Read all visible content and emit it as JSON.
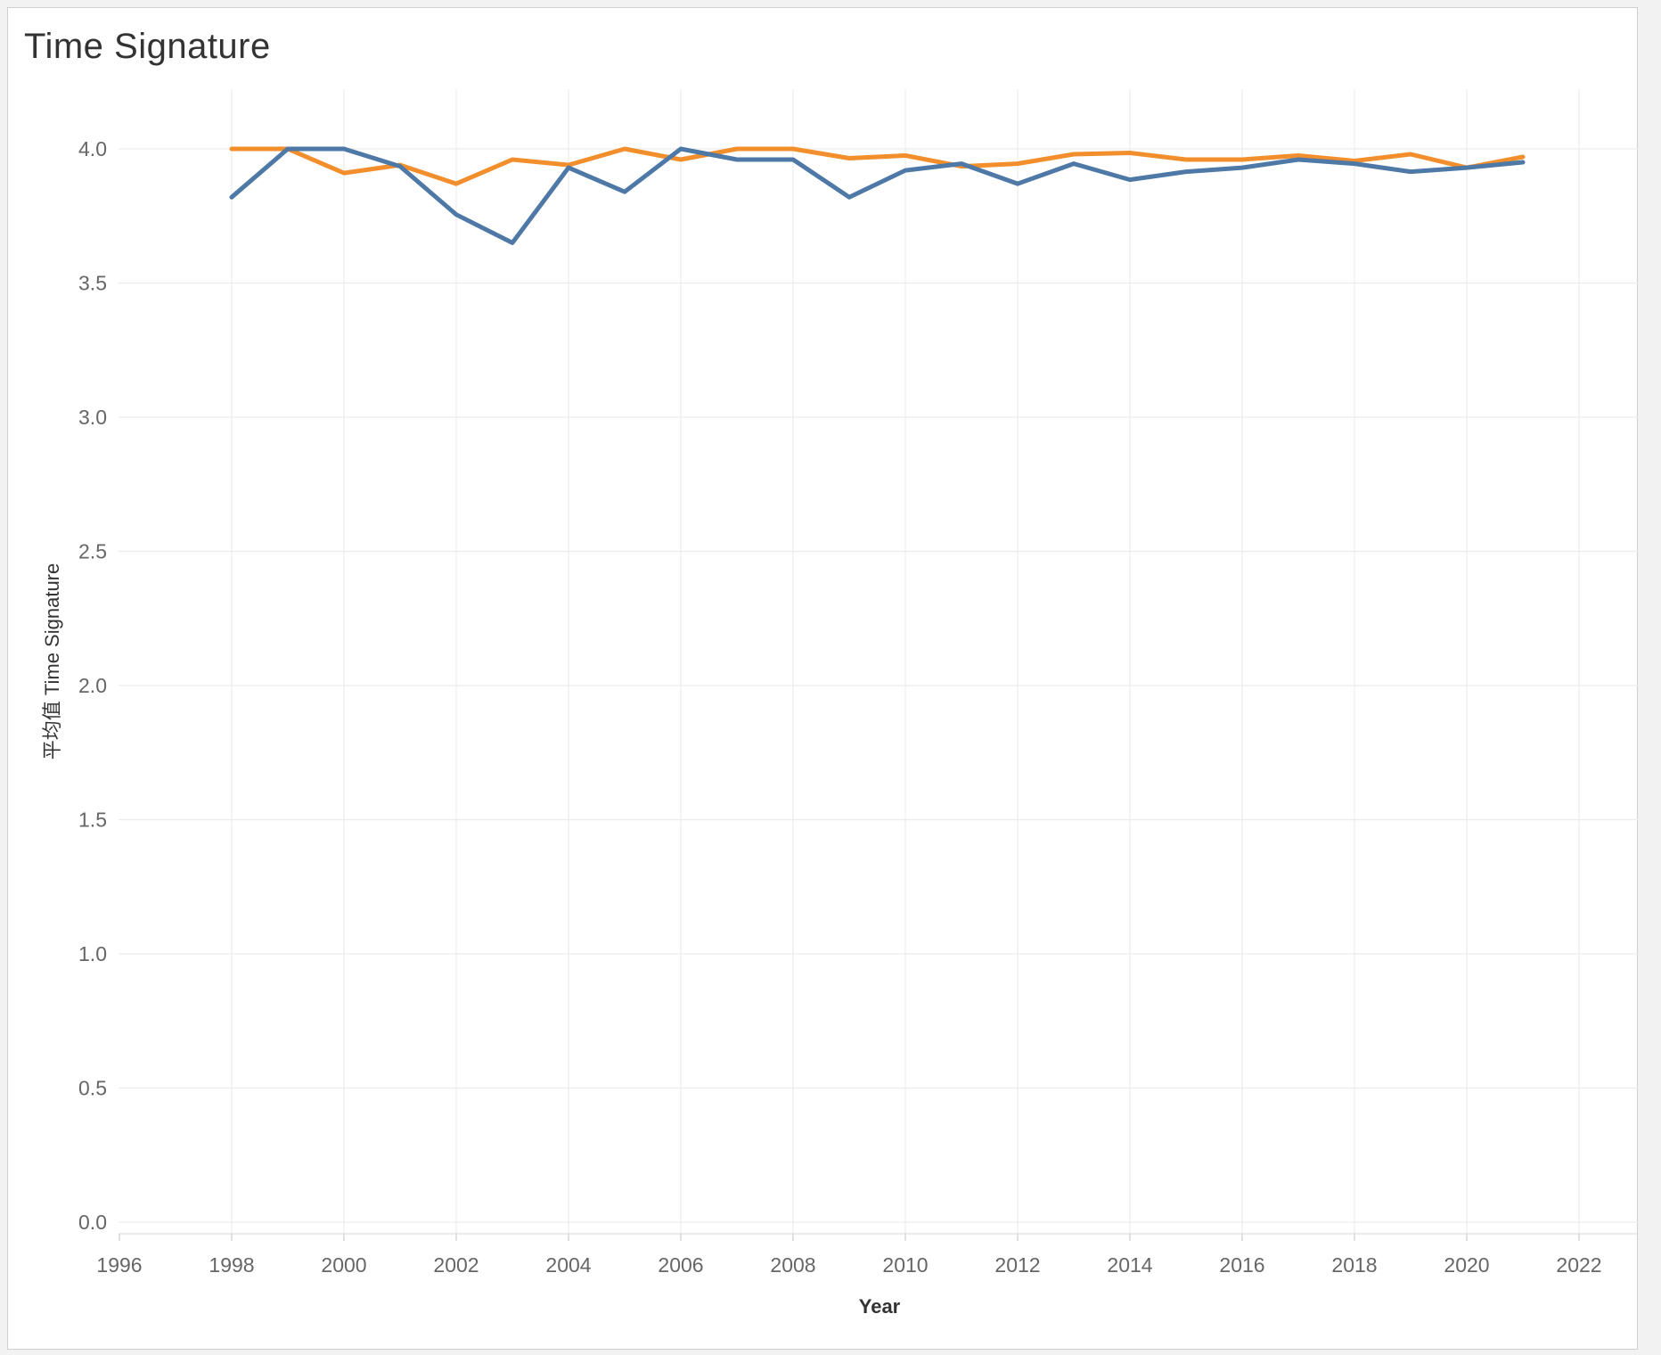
{
  "title": "Time Signature",
  "chart_data": {
    "type": "line",
    "title": "Time Signature",
    "xlabel": "Year",
    "ylabel": "平均值 Time Signature",
    "xlim": [
      1995,
      2023.5
    ],
    "ylim": [
      0,
      4.2
    ],
    "x_ticks": [
      1996,
      1998,
      2000,
      2002,
      2004,
      2006,
      2008,
      2010,
      2012,
      2014,
      2016,
      2018,
      2020,
      2022
    ],
    "y_ticks": [
      0.0,
      0.5,
      1.0,
      1.5,
      2.0,
      2.5,
      3.0,
      3.5,
      4.0
    ],
    "y_tick_labels": [
      "0.0",
      "0.5",
      "1.0",
      "1.5",
      "2.0",
      "2.5",
      "3.0",
      "3.5",
      "4.0"
    ],
    "grid": true,
    "x": [
      1998,
      1999,
      2000,
      2001,
      2002,
      2003,
      2004,
      2005,
      2006,
      2007,
      2008,
      2009,
      2010,
      2011,
      2012,
      2013,
      2014,
      2015,
      2016,
      2017,
      2018,
      2019,
      2020,
      2021
    ],
    "series": [
      {
        "color": "#f28e2b",
        "values": [
          4.0,
          4.0,
          3.91,
          3.94,
          3.87,
          3.96,
          3.94,
          4.0,
          3.96,
          4.0,
          4.0,
          3.965,
          3.975,
          3.935,
          3.945,
          3.98,
          3.985,
          3.96,
          3.96,
          3.975,
          3.955,
          3.98,
          3.93,
          3.97
        ]
      },
      {
        "color": "#4e79a7",
        "values": [
          3.82,
          4.0,
          4.0,
          3.935,
          3.755,
          3.65,
          3.93,
          3.84,
          4.0,
          3.96,
          3.96,
          3.82,
          3.92,
          3.945,
          3.87,
          3.945,
          3.885,
          3.915,
          3.93,
          3.96,
          3.945,
          3.915,
          3.93,
          3.95
        ]
      }
    ]
  }
}
